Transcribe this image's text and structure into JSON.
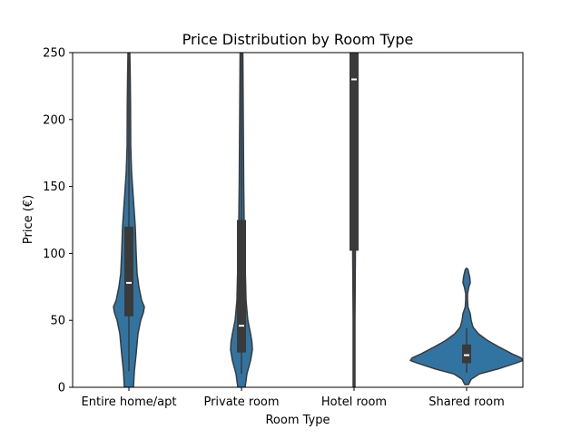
{
  "chart_data": {
    "type": "violin",
    "title": "Price Distribution by Room Type",
    "xlabel": "Room Type",
    "ylabel": "Price (€)",
    "ylim": [
      0,
      250
    ],
    "yticks": [
      0,
      50,
      100,
      150,
      200,
      250
    ],
    "categories": [
      "Entire home/apt",
      "Private room",
      "Hotel room",
      "Shared room"
    ],
    "fill_color": "#3274a1",
    "box_color": "#3a3a3a",
    "edge_color": "#3a3a3a",
    "violins": [
      {
        "category": "Entire home/apt",
        "median": 78,
        "q1": 53,
        "q3": 120,
        "whisker_low": 12,
        "whisker_high": 250,
        "profile": [
          [
            0,
            5
          ],
          [
            12,
            6
          ],
          [
            25,
            8
          ],
          [
            40,
            10
          ],
          [
            50,
            13
          ],
          [
            56,
            16
          ],
          [
            60,
            17
          ],
          [
            65,
            14
          ],
          [
            75,
            11
          ],
          [
            85,
            9
          ],
          [
            100,
            8
          ],
          [
            120,
            7
          ],
          [
            140,
            5
          ],
          [
            160,
            3
          ],
          [
            180,
            2
          ],
          [
            210,
            1.8
          ],
          [
            230,
            1.5
          ],
          [
            250,
            1
          ]
        ]
      },
      {
        "category": "Private room",
        "median": 46,
        "q1": 26,
        "q3": 125,
        "whisker_low": 10,
        "whisker_high": 250,
        "profile": [
          [
            0,
            4
          ],
          [
            10,
            6
          ],
          [
            20,
            10
          ],
          [
            28,
            12
          ],
          [
            34,
            11.5
          ],
          [
            40,
            10
          ],
          [
            50,
            7
          ],
          [
            65,
            5
          ],
          [
            80,
            4.5
          ],
          [
            100,
            3.5
          ],
          [
            120,
            3
          ],
          [
            150,
            2.5
          ],
          [
            200,
            2
          ],
          [
            250,
            1.5
          ]
        ]
      },
      {
        "category": "Hotel room",
        "median": 230,
        "q1": 102,
        "q3": 250,
        "whisker_low": 0,
        "whisker_high": 250,
        "profile": [
          [
            0,
            1
          ],
          [
            50,
            1
          ],
          [
            100,
            1.5
          ],
          [
            250,
            1.5
          ]
        ]
      },
      {
        "category": "Shared room",
        "median": 24,
        "q1": 18,
        "q3": 32,
        "whisker_low": 11,
        "whisker_high": 44,
        "profile": [
          [
            2,
            2
          ],
          [
            6,
            5
          ],
          [
            10,
            14
          ],
          [
            14,
            36
          ],
          [
            18,
            54
          ],
          [
            20,
            62
          ],
          [
            22,
            60
          ],
          [
            25,
            50
          ],
          [
            30,
            36
          ],
          [
            35,
            23
          ],
          [
            40,
            13
          ],
          [
            45,
            7
          ],
          [
            50,
            5
          ],
          [
            55,
            4
          ],
          [
            60,
            1.5
          ],
          [
            65,
            1
          ],
          [
            70,
            1
          ],
          [
            75,
            2.5
          ],
          [
            78,
            4
          ],
          [
            82,
            3.5
          ],
          [
            85,
            2.5
          ],
          [
            88,
            1.5
          ],
          [
            89,
            0
          ]
        ]
      }
    ]
  }
}
